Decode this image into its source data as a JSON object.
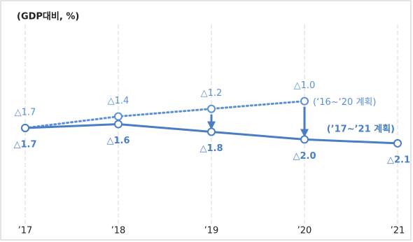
{
  "chart_data": {
    "type": "line",
    "unit_label": "(GDP대비, %)",
    "categories": [
      "’17",
      "’18",
      "’19",
      "’20",
      "’21"
    ],
    "series": [
      {
        "name": "(‘16~‘20 계획)",
        "color": "#5b8fd6",
        "dotted": true,
        "values": [
          -1.7,
          -1.4,
          -1.2,
          -1.0,
          null
        ],
        "value_labels": [
          "△1.7",
          "△1.4",
          "△1.2",
          "△1.0",
          null
        ]
      },
      {
        "name": "(’17~’21 계획)",
        "color": "#4a7ec4",
        "dotted": false,
        "values": [
          -1.7,
          -1.6,
          -1.8,
          -2.0,
          -2.1
        ],
        "value_labels": [
          "△1.7",
          "△1.6",
          "△1.8",
          "△2.0",
          "△2.1"
        ]
      }
    ],
    "ylim": [
      -4.2,
      1.0
    ],
    "grid": true
  }
}
